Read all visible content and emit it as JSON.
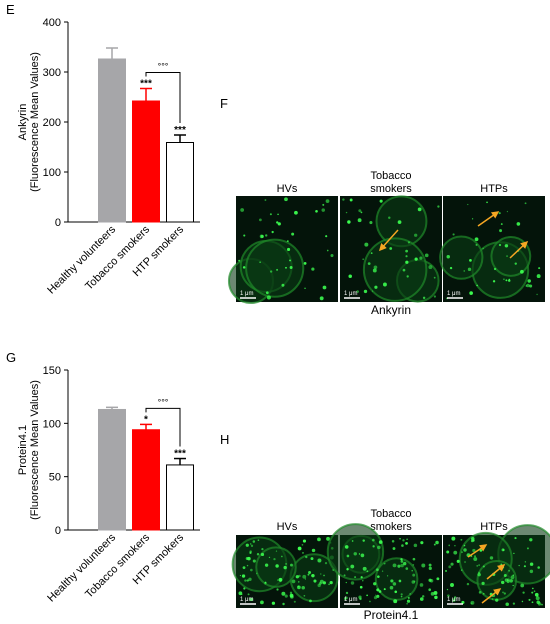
{
  "chart_data": [
    {
      "type": "bar",
      "panel_label": "E",
      "ylabel": [
        "Ankyrin",
        "(Fluorescence Mean Values)"
      ],
      "categories": [
        "Healthy volunteers",
        "Tobacco smokers",
        "HTP smokers"
      ],
      "values": [
        326,
        242,
        159
      ],
      "errors": [
        22,
        25,
        15
      ],
      "colors": [
        "#a6a6a9",
        "#ff0000",
        "#ffffff"
      ],
      "edgecolors": [
        "#a6a6a9",
        "#ff0000",
        "#000000"
      ],
      "significance": [
        null,
        "***",
        "***"
      ],
      "comparison_label": "°°°",
      "ylim": [
        0,
        400
      ],
      "yticks": [
        0,
        100,
        200,
        300,
        400
      ]
    },
    {
      "type": "bar",
      "panel_label": "G",
      "ylabel": [
        "Protein4.1",
        "(Fluorescence Mean Values)"
      ],
      "categories": [
        "Healthy volunteers",
        "Tobacco smokers",
        "HTP smokers"
      ],
      "values": [
        113,
        94,
        61
      ],
      "errors": [
        2,
        5,
        6
      ],
      "colors": [
        "#a6a6a9",
        "#ff0000",
        "#ffffff"
      ],
      "edgecolors": [
        "#a6a6a9",
        "#ff0000",
        "#000000"
      ],
      "significance": [
        null,
        "*",
        "***"
      ],
      "comparison_label": "°°°",
      "ylim": [
        0,
        150
      ],
      "yticks": [
        0,
        50,
        100,
        150
      ]
    }
  ],
  "image_panels": [
    {
      "panel_label": "F",
      "columns": [
        "HVs",
        "Tobacco smokers",
        "HTPs"
      ],
      "scale_bar_label": "1 μm",
      "caption": "Ankyrin"
    },
    {
      "panel_label": "H",
      "columns": [
        "HVs",
        "Tobacco smokers",
        "HTPs"
      ],
      "scale_bar_label": "1 μm",
      "caption": "Protein4.1"
    }
  ]
}
